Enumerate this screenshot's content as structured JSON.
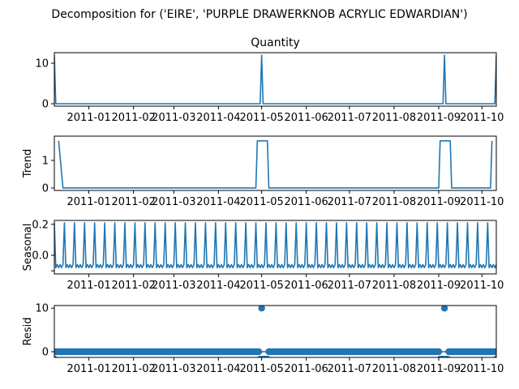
{
  "chart_data": {
    "type": "line",
    "suptitle": "Decomposition for ('EIRE', 'PURPLE DRAWERKNOB ACRYLIC EDWARDIAN')",
    "x_tick_labels": [
      "2011-01",
      "2011-02",
      "2011-03",
      "2011-04",
      "2011-05",
      "2011-06",
      "2011-07",
      "2011-08",
      "2011-09",
      "2011-10"
    ],
    "x_tick_dates": [
      "2011-01-01",
      "2011-02-01",
      "2011-03-01",
      "2011-04-01",
      "2011-05-01",
      "2011-06-01",
      "2011-07-01",
      "2011-08-01",
      "2011-09-01",
      "2011-10-01"
    ],
    "x_range": [
      "2010-12-08",
      "2011-10-11"
    ],
    "series_color": "#1f77b4",
    "panels": [
      {
        "title": "Quantity",
        "ylabel": "",
        "kind": "line",
        "ylim": [
          -0.6,
          12.6
        ],
        "yticks": [
          0,
          10
        ],
        "points": [
          [
            "2010-12-08",
            12
          ],
          [
            "2010-12-09",
            0
          ],
          [
            "2011-04-30",
            0
          ],
          [
            "2011-05-01",
            12
          ],
          [
            "2011-05-02",
            0
          ],
          [
            "2011-09-04",
            0
          ],
          [
            "2011-09-05",
            12
          ],
          [
            "2011-09-06",
            0
          ],
          [
            "2011-10-10",
            0
          ],
          [
            "2011-10-11",
            12
          ]
        ]
      },
      {
        "title": "",
        "ylabel": "Trend",
        "kind": "line",
        "ylim": [
          -0.09,
          1.88
        ],
        "yticks": [
          0,
          1
        ],
        "points": [
          [
            "2010-12-11",
            1.71
          ],
          [
            "2010-12-14",
            0
          ],
          [
            "2011-04-27",
            0
          ],
          [
            "2011-04-28",
            1.71
          ],
          [
            "2011-05-05",
            1.71
          ],
          [
            "2011-05-06",
            0
          ],
          [
            "2011-09-01",
            0
          ],
          [
            "2011-09-02",
            1.71
          ],
          [
            "2011-09-09",
            1.71
          ],
          [
            "2011-09-10",
            0
          ],
          [
            "2011-10-07",
            0
          ],
          [
            "2011-10-08",
            1.71
          ]
        ]
      },
      {
        "title": "",
        "ylabel": "Seasonal",
        "kind": "seasonal",
        "ylim": [
          -0.12,
          0.225
        ],
        "yticks": [
          -0.1,
          0.0,
          0.2
        ],
        "ytick_labels": [
          "",
          "0.0",
          "0.2"
        ],
        "period_days": 7,
        "weekly_pattern": [
          0.21,
          -0.08,
          -0.06,
          -0.08,
          -0.06,
          -0.08,
          -0.06
        ]
      },
      {
        "title": "",
        "ylabel": "Resid",
        "kind": "scatter",
        "ylim": [
          -1.3,
          10.6
        ],
        "yticks": [
          0,
          10
        ],
        "baseline": 0,
        "outliers": [
          [
            "2010-12-08",
            -1.7
          ],
          [
            "2011-04-30",
            -1.7
          ],
          [
            "2011-05-01",
            10.0
          ],
          [
            "2011-05-02",
            -1.7
          ],
          [
            "2011-05-03",
            -1.7
          ],
          [
            "2011-05-04",
            -1.7
          ],
          [
            "2011-05-05",
            -1.7
          ],
          [
            "2011-09-02",
            -1.7
          ],
          [
            "2011-09-03",
            -1.7
          ],
          [
            "2011-09-04",
            -1.7
          ],
          [
            "2011-09-05",
            10.0
          ],
          [
            "2011-09-06",
            -1.7
          ],
          [
            "2011-09-07",
            -1.7
          ],
          [
            "2011-10-11",
            -1.7
          ]
        ]
      }
    ]
  }
}
